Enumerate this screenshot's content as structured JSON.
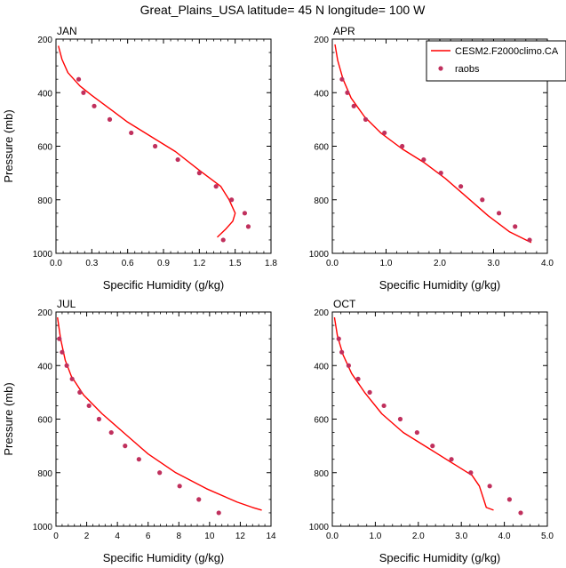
{
  "figure": {
    "title": "Great_Plains_USA  latitude= 45 N longitude= 100 W",
    "model_color": "#ff0000",
    "obs_color": "#c0305d"
  },
  "chart_data": [
    {
      "type": "line",
      "panel_label": "JAN",
      "xlabel": "Specific Humidity (g/kg)",
      "ylabel": "Pressure (mb)",
      "xlim": [
        0,
        1.8
      ],
      "xticks": [
        "0.0",
        "0.3",
        "0.6",
        "0.9",
        "1.2",
        "1.5",
        "1.8"
      ],
      "xtick_values": [
        0,
        0.3,
        0.6,
        0.9,
        1.2,
        1.5,
        1.8
      ],
      "ylim": [
        1000,
        200
      ],
      "yticks": [
        "200",
        "400",
        "600",
        "800",
        "1000"
      ],
      "ytick_values": [
        200,
        400,
        600,
        800,
        1000
      ],
      "legend": null,
      "series": [
        {
          "name": "CESM2.F2000climo.CA",
          "kind": "line",
          "x": [
            0.02,
            0.05,
            0.1,
            0.2,
            0.3,
            0.45,
            0.6,
            0.8,
            1.0,
            1.2,
            1.38,
            1.45,
            1.5,
            1.48,
            1.42,
            1.35
          ],
          "y": [
            225,
            275,
            325,
            375,
            410,
            460,
            510,
            565,
            620,
            690,
            750,
            800,
            850,
            880,
            910,
            940
          ]
        },
        {
          "name": "raobs",
          "kind": "scatter",
          "x": [
            0.19,
            0.23,
            0.32,
            0.45,
            0.63,
            0.83,
            1.02,
            1.2,
            1.34,
            1.47,
            1.58,
            1.61,
            1.4
          ],
          "y": [
            350,
            400,
            450,
            500,
            550,
            600,
            650,
            700,
            750,
            800,
            850,
            900,
            950
          ]
        }
      ]
    },
    {
      "type": "line",
      "panel_label": "APR",
      "xlabel": "Specific Humidity (g/kg)",
      "ylabel": "",
      "xlim": [
        0,
        4.0
      ],
      "xticks": [
        "0.0",
        "1.0",
        "2.0",
        "3.0",
        "4.0"
      ],
      "xtick_values": [
        0,
        1,
        2,
        3,
        4
      ],
      "ylim": [
        1000,
        200
      ],
      "yticks": [
        "200",
        "400",
        "600",
        "800",
        "1000"
      ],
      "ytick_values": [
        200,
        400,
        600,
        800,
        1000
      ],
      "legend": {
        "location": "top-right",
        "entries": [
          "CESM2.F2000climo.CA",
          "raobs"
        ]
      },
      "series": [
        {
          "name": "CESM2.F2000climo.CA",
          "kind": "line",
          "x": [
            0.05,
            0.1,
            0.2,
            0.35,
            0.6,
            0.9,
            1.3,
            1.7,
            2.1,
            2.5,
            2.9,
            3.3,
            3.7
          ],
          "y": [
            220,
            280,
            350,
            420,
            490,
            550,
            610,
            660,
            720,
            790,
            860,
            920,
            960
          ]
        },
        {
          "name": "raobs",
          "kind": "scatter",
          "x": [
            0.18,
            0.28,
            0.4,
            0.62,
            0.97,
            1.3,
            1.7,
            2.02,
            2.39,
            2.79,
            3.1,
            3.4,
            3.67
          ],
          "y": [
            350,
            400,
            450,
            500,
            550,
            600,
            650,
            700,
            750,
            800,
            850,
            900,
            950
          ]
        }
      ]
    },
    {
      "type": "line",
      "panel_label": "JUL",
      "xlabel": "Specific Humidity (g/kg)",
      "ylabel": "Pressure (mb)",
      "xlim": [
        0,
        14
      ],
      "xticks": [
        "0",
        "2",
        "4",
        "6",
        "8",
        "10",
        "12",
        "14"
      ],
      "xtick_values": [
        0,
        2,
        4,
        6,
        8,
        10,
        12,
        14
      ],
      "ylim": [
        1000,
        200
      ],
      "yticks": [
        "200",
        "400",
        "600",
        "800",
        "1000"
      ],
      "ytick_values": [
        200,
        400,
        600,
        800,
        1000
      ],
      "legend": null,
      "series": [
        {
          "name": "CESM2.F2000climo.CA",
          "kind": "line",
          "x": [
            0.1,
            0.3,
            0.6,
            1.0,
            1.8,
            3.0,
            4.6,
            6.0,
            7.8,
            9.8,
            11.8,
            12.8,
            13.4
          ],
          "y": [
            220,
            300,
            380,
            440,
            510,
            580,
            660,
            730,
            800,
            860,
            910,
            930,
            940
          ]
        },
        {
          "name": "raobs",
          "kind": "scatter",
          "x": [
            0.22,
            0.4,
            0.7,
            1.05,
            1.55,
            2.15,
            2.8,
            3.6,
            4.5,
            5.4,
            6.75,
            8.05,
            9.3,
            10.6
          ],
          "y": [
            300,
            350,
            400,
            450,
            500,
            550,
            600,
            650,
            700,
            750,
            800,
            850,
            900,
            950
          ]
        }
      ]
    },
    {
      "type": "line",
      "panel_label": "OCT",
      "xlabel": "Specific Humidity (g/kg)",
      "ylabel": "",
      "xlim": [
        0,
        5.0
      ],
      "xticks": [
        "0.0",
        "1.0",
        "2.0",
        "3.0",
        "4.0",
        "5.0"
      ],
      "xtick_values": [
        0,
        1,
        2,
        3,
        4,
        5
      ],
      "ylim": [
        1000,
        200
      ],
      "yticks": [
        "200",
        "400",
        "600",
        "800",
        "1000"
      ],
      "ytick_values": [
        200,
        400,
        600,
        800,
        1000
      ],
      "legend": null,
      "series": [
        {
          "name": "CESM2.F2000climo.CA",
          "kind": "line",
          "x": [
            0.05,
            0.12,
            0.25,
            0.45,
            0.75,
            1.15,
            1.65,
            2.25,
            2.85,
            3.25,
            3.42,
            3.52,
            3.58,
            3.75
          ],
          "y": [
            220,
            290,
            360,
            430,
            500,
            580,
            650,
            710,
            770,
            810,
            850,
            900,
            930,
            940
          ]
        },
        {
          "name": "raobs",
          "kind": "scatter",
          "x": [
            0.15,
            0.22,
            0.38,
            0.6,
            0.87,
            1.2,
            1.58,
            1.97,
            2.33,
            2.77,
            3.22,
            3.66,
            4.12,
            4.38
          ],
          "y": [
            300,
            350,
            400,
            450,
            500,
            550,
            600,
            650,
            700,
            750,
            800,
            850,
            900,
            950
          ]
        }
      ]
    }
  ]
}
